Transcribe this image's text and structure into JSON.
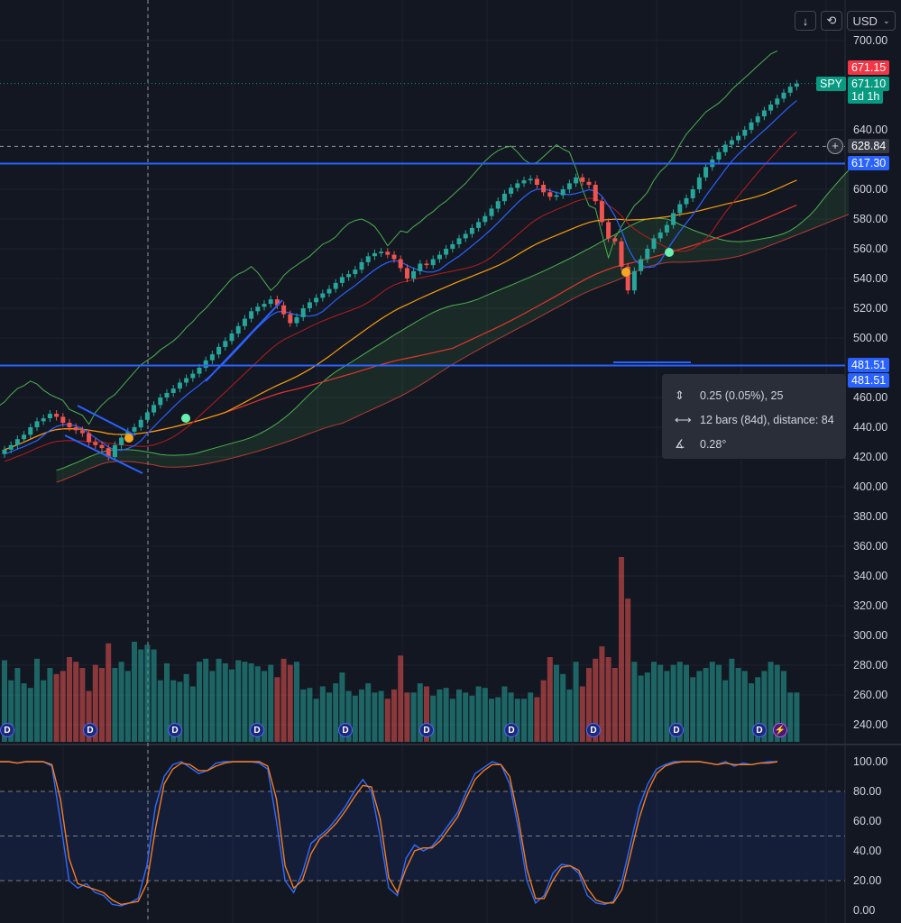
{
  "toolbar": {
    "download_icon": "download-icon",
    "refresh_icon": "refresh-icon",
    "currency": "USD"
  },
  "price_tags": {
    "high": "671.15",
    "symbol": "SPY",
    "last": "671.10",
    "countdown": "1d 1h",
    "crosshair": "628.84",
    "resistance": "617.30",
    "support_a": "481.51",
    "support_b": "481.51"
  },
  "tooltip": {
    "price_range": "0.25 (0.05%), 25",
    "bars_range": "12 bars (84d), distance: 84",
    "angle": "0.28°"
  },
  "colors": {
    "background": "#131722",
    "up": "#26a69a",
    "down": "#ef5350",
    "blue": "#2962ff",
    "ma_orange": "#f59e0b",
    "ma_red": "#e5342e",
    "cloud_green": "#4caf50",
    "cloud_red": "#b23a36",
    "stoch_k": "#2f6bff",
    "stoch_d": "#f57c1f"
  },
  "dividend_markers": [
    "D",
    "D",
    "D",
    "D",
    "D",
    "D",
    "D",
    "D",
    "D",
    "D"
  ],
  "chart_data": [
    {
      "type": "candlestick",
      "symbol": "SPY",
      "y_range": [
        230,
        705
      ],
      "y_ticks": [
        "700.00",
        "640.00",
        "600.00",
        "580.00",
        "560.00",
        "540.00",
        "520.00",
        "500.00",
        "460.00",
        "440.00",
        "420.00",
        "400.00",
        "380.00",
        "360.00",
        "340.00",
        "320.00",
        "300.00",
        "280.00",
        "260.00",
        "240.00"
      ],
      "horizontal_levels": [
        617.3,
        481.51
      ],
      "crosshair_price": 628.84,
      "closes": [
        425,
        428,
        432,
        435,
        440,
        444,
        446,
        449,
        447,
        443,
        440,
        438,
        436,
        430,
        428,
        426,
        420,
        428,
        433,
        437,
        440,
        445,
        450,
        455,
        460,
        463,
        466,
        470,
        473,
        476,
        480,
        485,
        489,
        494,
        498,
        503,
        508,
        513,
        518,
        521,
        523,
        526,
        522,
        516,
        510,
        514,
        520,
        524,
        527,
        530,
        533,
        537,
        541,
        543,
        546,
        551,
        555,
        557,
        558,
        556,
        553,
        547,
        540,
        545,
        550,
        549,
        553,
        556,
        560,
        563,
        567,
        570,
        574,
        578,
        582,
        587,
        592,
        597,
        601,
        604,
        606,
        607,
        603,
        598,
        595,
        596,
        600,
        604,
        608,
        605,
        603,
        592,
        578,
        567,
        565,
        548,
        532,
        545,
        553,
        560,
        567,
        571,
        576,
        584,
        590,
        594,
        600,
        608,
        615,
        620,
        625,
        630,
        633,
        636,
        640,
        645,
        649,
        653,
        657,
        661,
        665,
        669,
        671
      ],
      "volume_range": [
        230,
        350
      ],
      "volumes": [
        283,
        270,
        278,
        268,
        265,
        284,
        270,
        278,
        274,
        276,
        285,
        282,
        278,
        263,
        280,
        278,
        294,
        278,
        282,
        276,
        295,
        290,
        293,
        290,
        270,
        281,
        270,
        269,
        274,
        266,
        282,
        284,
        276,
        284,
        281,
        277,
        283,
        282,
        281,
        279,
        276,
        280,
        272,
        284,
        280,
        282,
        264,
        265,
        258,
        266,
        262,
        268,
        275,
        263,
        260,
        264,
        268,
        262,
        263,
        258,
        264,
        286,
        262,
        262,
        268,
        266,
        260,
        264,
        265,
        258,
        264,
        262,
        260,
        266,
        265,
        258,
        259,
        266,
        262,
        258,
        258,
        262,
        259,
        270,
        285,
        280,
        274,
        264,
        282,
        266,
        278,
        284,
        292,
        285,
        278,
        350,
        323,
        282,
        273,
        275,
        282,
        280,
        276,
        280,
        282,
        280,
        272,
        276,
        278,
        282,
        280,
        270,
        284,
        278,
        276,
        268,
        272,
        276,
        282,
        280,
        276,
        262,
        262
      ],
      "volume_ticks": [
        "340.00",
        "320.00",
        "300.00",
        "280.00",
        "260.00",
        "240.00"
      ]
    },
    {
      "type": "line",
      "name": "stochastic",
      "y_range": [
        0,
        100
      ],
      "y_ticks": [
        "100.00",
        "80.00",
        "60.00",
        "40.00",
        "20.00",
        "0.00"
      ],
      "k": [
        100,
        100,
        99,
        100,
        100,
        100,
        97,
        60,
        20,
        15,
        18,
        12,
        10,
        4,
        3,
        5,
        8,
        30,
        70,
        90,
        98,
        100,
        96,
        92,
        94,
        99,
        100,
        100,
        100,
        100,
        99,
        95,
        60,
        20,
        12,
        25,
        45,
        50,
        55,
        62,
        70,
        80,
        88,
        80,
        50,
        15,
        10,
        35,
        44,
        40,
        43,
        50,
        58,
        66,
        80,
        92,
        96,
        100,
        98,
        85,
        55,
        20,
        5,
        10,
        25,
        31,
        30,
        25,
        10,
        5,
        4,
        6,
        20,
        45,
        70,
        85,
        95,
        98,
        100,
        100,
        100,
        100,
        99,
        98,
        100,
        97,
        99,
        98,
        99,
        100,
        100
      ],
      "d": [
        100,
        100,
        99,
        100,
        100,
        100,
        98,
        75,
        35,
        18,
        16,
        14,
        12,
        7,
        4,
        5,
        6,
        18,
        55,
        85,
        95,
        99,
        98,
        94,
        94,
        97,
        99,
        100,
        100,
        100,
        100,
        97,
        75,
        30,
        15,
        20,
        38,
        48,
        53,
        59,
        67,
        76,
        84,
        83,
        62,
        22,
        12,
        28,
        40,
        42,
        42,
        47,
        55,
        63,
        76,
        88,
        94,
        98,
        98,
        90,
        62,
        28,
        8,
        8,
        20,
        29,
        30,
        27,
        15,
        7,
        5,
        5,
        14,
        38,
        62,
        80,
        92,
        97,
        99,
        100,
        100,
        100,
        99,
        98,
        99,
        98,
        98,
        98,
        99,
        99,
        100
      ]
    }
  ]
}
